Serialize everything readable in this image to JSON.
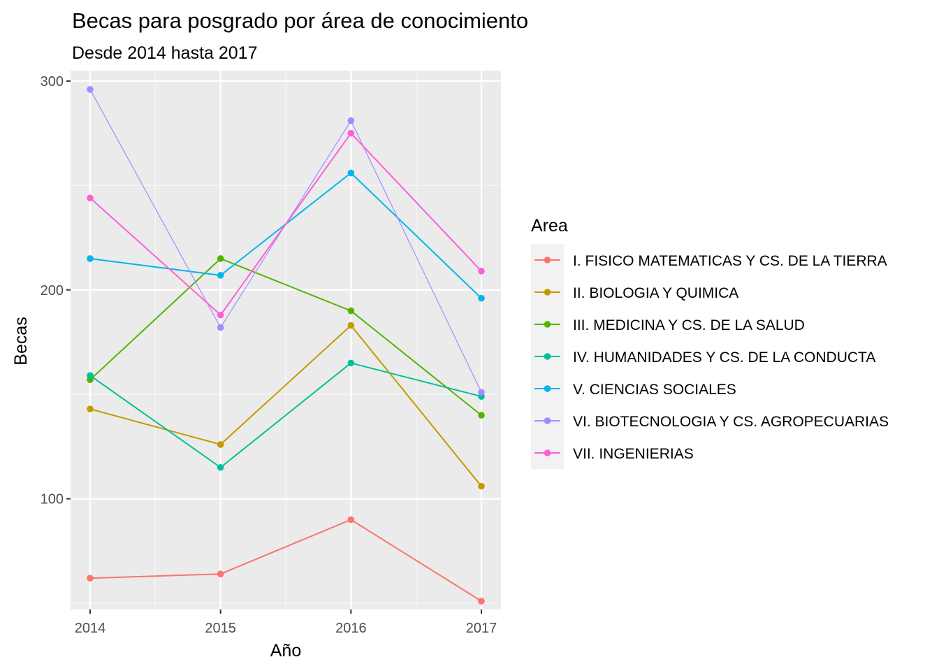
{
  "chart_data": {
    "type": "line",
    "title": "Becas para posgrado por área de conocimiento",
    "subtitle": "Desde 2014 hasta 2017",
    "xlabel": "Año",
    "ylabel": "Becas",
    "categories": [
      "2014",
      "2015",
      "2016",
      "2017"
    ],
    "y_ticks": [
      "100",
      "200",
      "300"
    ],
    "ylim": [
      47,
      305
    ],
    "grid": true,
    "legend": {
      "title": "Area",
      "position": "right"
    },
    "series": [
      {
        "name": "I. FISICO MATEMATICAS Y CS. DE LA TIERRA",
        "color": "#F8766D",
        "values": [
          62,
          64,
          90,
          51
        ]
      },
      {
        "name": "II. BIOLOGIA Y QUIMICA",
        "color": "#C49A00",
        "values": [
          143,
          126,
          183,
          106
        ]
      },
      {
        "name": "III. MEDICINA Y CS. DE LA SALUD",
        "color": "#53B400",
        "values": [
          157,
          215,
          190,
          140
        ]
      },
      {
        "name": "IV. HUMANIDADES Y CS. DE LA CONDUCTA",
        "color": "#00C094",
        "values": [
          159,
          115,
          165,
          149
        ]
      },
      {
        "name": "V. CIENCIAS SOCIALES",
        "color": "#00B6EB",
        "values": [
          215,
          207,
          256,
          196
        ]
      },
      {
        "name": "VI. BIOTECNOLOGIA Y CS. AGROPECUARIAS",
        "color": "#A58AFF",
        "values": [
          296,
          182,
          281,
          151
        ]
      },
      {
        "name": "VII. INGENIERIAS",
        "color": "#FB61D7",
        "values": [
          244,
          188,
          275,
          209
        ]
      }
    ]
  }
}
